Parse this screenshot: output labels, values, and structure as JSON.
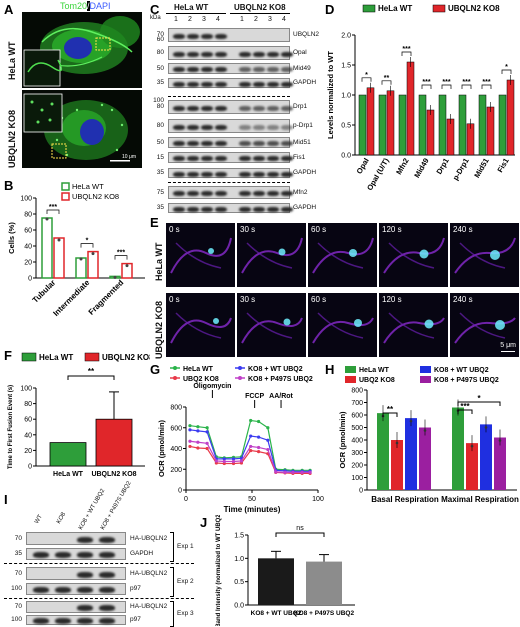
{
  "panels": {
    "a": "A",
    "b": "B",
    "c": "C",
    "d": "D",
    "e": "E",
    "f": "F",
    "g": "G",
    "h": "H",
    "i": "I",
    "j": "J"
  },
  "panelA": {
    "stain_a": "Tom20",
    "stain_sep": "/",
    "stain_b": "DAPI",
    "row1": "HeLa WT",
    "row2": "UBQLN2 KO8",
    "scale": "10 μm"
  },
  "panelB": {
    "legend": [
      "HeLa WT",
      "UBQLN2 KO8"
    ],
    "ylabel": "Cells (%)",
    "yticks": [
      "0",
      "20",
      "40",
      "60",
      "80",
      "100"
    ],
    "categories": [
      "Tubular",
      "Intermediate",
      "Fragmented"
    ],
    "sig": [
      "***",
      "*",
      "***"
    ]
  },
  "panelC": {
    "group1": "HeLa WT",
    "group2": "UBQLN2 KO8",
    "kda": "kDa",
    "lanes": [
      "1",
      "2",
      "3",
      "4",
      "1",
      "2",
      "3",
      "4"
    ],
    "rows": [
      {
        "kda": "70",
        "label": "UBQLN2"
      },
      {
        "kda": "80",
        "label": "Opal"
      },
      {
        "kda": "50",
        "label": "Mid49"
      },
      {
        "kda": "35",
        "label": "GAPDH"
      },
      {
        "kda": "80",
        "label": "Drp1"
      },
      {
        "kda": "80",
        "label": "p-Drp1"
      },
      {
        "kda": "50",
        "label": "Mid51"
      },
      {
        "kda": "15",
        "label": "Fis1"
      },
      {
        "kda": "35",
        "label": "GAPDH"
      },
      {
        "kda": "75",
        "label": "Mfn2"
      },
      {
        "kda": "35",
        "label": "GAPDH"
      }
    ],
    "extra_kda": [
      "100",
      "60"
    ]
  },
  "panelD": {
    "legend": [
      "HeLa WT",
      "UBQLN2 KO8"
    ],
    "ylabel": "Levels normalized to WT",
    "yticks": [
      "0.0",
      "0.5",
      "1.0",
      "1.5",
      "2.0"
    ],
    "categories": [
      "OpaI",
      "OpaI (U/T)",
      "Mfn2",
      "Mid49",
      "Drp1",
      "p-Drp1",
      "Mid51",
      "Fis1"
    ],
    "sig": [
      "*",
      "**",
      "***",
      "***",
      "***",
      "***",
      "***",
      "*"
    ]
  },
  "panelE": {
    "times": [
      "0 s",
      "30 s",
      "60 s",
      "120 s",
      "240 s"
    ],
    "row1": "HeLa WT",
    "row2": "UBQLN2 KO8",
    "scale": "5 μm"
  },
  "panelF": {
    "legend": [
      "HeLa WT",
      "UBQLN2 KO8"
    ],
    "ylabel": "Time to First Fusion Event (s)",
    "yticks": [
      "0",
      "20",
      "40",
      "60",
      "80",
      "100"
    ],
    "categories": [
      "HeLa WT",
      "UBQLN2 KO8"
    ],
    "sig": "**"
  },
  "panelG": {
    "legend": [
      "HeLa WT",
      "UBQ2 KO8",
      "KO8 + WT UBQ2",
      "KO8 + P497S UBQ2"
    ],
    "annotations": [
      "Oligomycin",
      "FCCP",
      "AA/Rot"
    ],
    "ylabel": "OCR (pmol/min)",
    "xlabel": "Time (minutes)",
    "yticks": [
      "0",
      "200",
      "400",
      "600",
      "800"
    ],
    "xticks": [
      "0",
      "50",
      "100"
    ]
  },
  "panelH": {
    "legend": [
      "HeLa WT",
      "UBQ2 KO8",
      "KO8 + WT UBQ2",
      "KO8 + P497S UBQ2"
    ],
    "ylabel": "OCR (pmol/min)",
    "yticks": [
      "0",
      "100",
      "200",
      "300",
      "400",
      "500",
      "600",
      "700",
      "800"
    ],
    "categories": [
      "Basal Respiration",
      "Maximal Respiration"
    ],
    "sig": [
      "**",
      "***",
      "*"
    ]
  },
  "panelI": {
    "lanes": [
      "WT",
      "KO8",
      "KO8 + WT UBQ2",
      "KO8 + P497S UBQ2"
    ],
    "rows": [
      {
        "kda": "70",
        "label": "HA-UBQLN2"
      },
      {
        "kda": "35",
        "label": "GAPDH"
      },
      {
        "kda": "70",
        "label": "HA-UBQLN2"
      },
      {
        "kda": "100",
        "label": "p97"
      },
      {
        "kda": "70",
        "label": "HA-UBQLN2"
      },
      {
        "kda": "100",
        "label": "p97"
      }
    ],
    "exps": [
      "Exp 1",
      "Exp 2",
      "Exp 3"
    ]
  },
  "panelJ": {
    "ylabel": "Band Intensity (normalized to WT UBQ2)",
    "yticks": [
      "0.0",
      "0.5",
      "1.0",
      "1.5"
    ],
    "categories": [
      "KO8 + WT UBQ2",
      "KO8 + P497S UBQ2"
    ],
    "sig": "ns"
  },
  "colors": {
    "green": "#2e9e3a",
    "red": "#e0262a",
    "blue": "#1f2fe0",
    "purple": "#9b1fa0",
    "green_line": "#2ab34a",
    "red_line": "#e83a4a",
    "blue_line": "#3b3bf0",
    "purple_line": "#c040c8"
  },
  "chart_data": [
    {
      "id": "B",
      "type": "bar",
      "categories": [
        "Tubular",
        "Intermediate",
        "Fragmented"
      ],
      "series": [
        {
          "name": "HeLa WT",
          "values": [
            75,
            25,
            2
          ]
        },
        {
          "name": "UBQLN2 KO8",
          "values": [
            50,
            33,
            18
          ]
        }
      ],
      "ylabel": "Cells (%)",
      "ylim": [
        0,
        100
      ]
    },
    {
      "id": "D",
      "type": "bar",
      "categories": [
        "OpaI",
        "OpaI (U/T)",
        "Mfn2",
        "Mid49",
        "Drp1",
        "p-Drp1",
        "Mid51",
        "Fis1"
      ],
      "series": [
        {
          "name": "HeLa WT",
          "values": [
            1.0,
            1.0,
            1.0,
            1.0,
            1.0,
            1.0,
            1.0,
            1.0
          ]
        },
        {
          "name": "UBQLN2 KO8",
          "values": [
            1.12,
            1.07,
            1.55,
            0.75,
            0.6,
            0.52,
            0.8,
            1.25
          ]
        }
      ],
      "ylabel": "Levels normalized to WT",
      "ylim": [
        0,
        2.0
      ]
    },
    {
      "id": "F",
      "type": "bar",
      "categories": [
        "HeLa WT",
        "UBQLN2 KO8"
      ],
      "values": [
        30,
        60
      ],
      "errors": [
        0,
        35
      ],
      "ylabel": "Time to First Fusion Event (s)",
      "ylim": [
        0,
        100
      ]
    },
    {
      "id": "G",
      "type": "line",
      "x": [
        3,
        9,
        16,
        23,
        29,
        36,
        42,
        49,
        55,
        62,
        68,
        75,
        81,
        88,
        94
      ],
      "series": [
        {
          "name": "HeLa WT",
          "values": [
            620,
            610,
            600,
            320,
            310,
            315,
            320,
            670,
            660,
            600,
            200,
            195,
            190,
            190,
            190
          ]
        },
        {
          "name": "UBQ2 KO8",
          "values": [
            420,
            405,
            400,
            260,
            255,
            255,
            260,
            380,
            370,
            350,
            170,
            165,
            160,
            160,
            160
          ]
        },
        {
          "name": "KO8 + WT UBQ2",
          "values": [
            580,
            570,
            560,
            300,
            300,
            300,
            305,
            520,
            510,
            480,
            190,
            185,
            180,
            180,
            180
          ]
        },
        {
          "name": "KO8 + P497S UBQ2",
          "values": [
            470,
            460,
            450,
            280,
            275,
            275,
            280,
            420,
            410,
            390,
            175,
            170,
            170,
            170,
            170
          ]
        }
      ],
      "xlabel": "Time (minutes)",
      "ylabel": "OCR (pmol/min)",
      "xlim": [
        0,
        100
      ],
      "ylim": [
        0,
        800
      ]
    },
    {
      "id": "H",
      "type": "bar",
      "categories": [
        "Basal Respiration",
        "Maximal Respiration"
      ],
      "series": [
        {
          "name": "HeLa WT",
          "values": [
            615,
            660
          ]
        },
        {
          "name": "UBQ2 KO8",
          "values": [
            400,
            375
          ]
        },
        {
          "name": "KO8 + WT UBQ2",
          "values": [
            575,
            525
          ]
        },
        {
          "name": "KO8 + P497S UBQ2",
          "values": [
            500,
            420
          ]
        }
      ],
      "ylabel": "OCR (pmol/min)",
      "ylim": [
        0,
        800
      ]
    },
    {
      "id": "J",
      "type": "bar",
      "categories": [
        "KO8 + WT UBQ2",
        "KO8 + P497S UBQ2"
      ],
      "values": [
        1.0,
        0.93
      ],
      "ylabel": "Band Intensity (normalized to WT UBQ2)",
      "ylim": [
        0,
        1.5
      ]
    }
  ]
}
